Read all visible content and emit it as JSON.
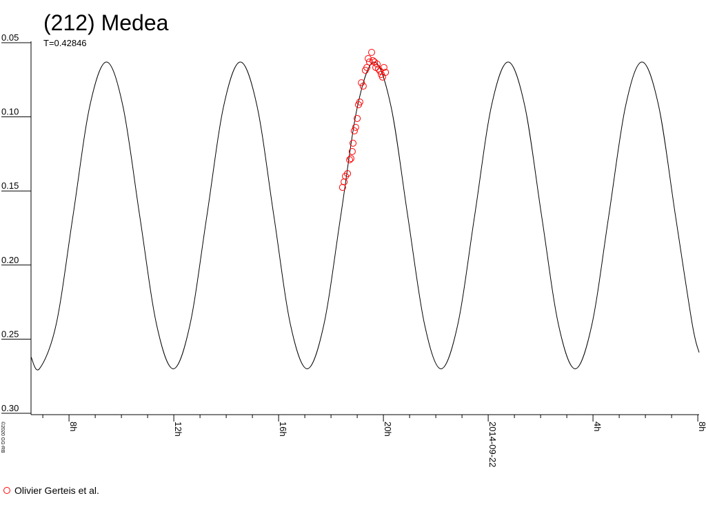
{
  "chart_data": {
    "type": "lightcurve",
    "title": "(212) Medea",
    "subtitle": "T=0.42846",
    "copyright": "©2020 GG-RB",
    "xlim": [
      -17.45,
      8.05
    ],
    "xticks": [
      {
        "value": -16,
        "label": "8h"
      },
      {
        "value": -12,
        "label": "12h"
      },
      {
        "value": -8,
        "label": "16h"
      },
      {
        "value": -4,
        "label": "20h"
      },
      {
        "value": 0,
        "label": "2014-09-22"
      },
      {
        "value": 4,
        "label": "4h"
      },
      {
        "value": 8,
        "label": "8h"
      }
    ],
    "xminorticks": [
      -17,
      -15,
      -14,
      -13,
      -11,
      -10,
      -9,
      -7,
      -6,
      -5,
      -3,
      -2,
      -1,
      1,
      2,
      3,
      5,
      6,
      7
    ],
    "ylim": [
      0.05,
      0.3
    ],
    "yinverted": true,
    "yticks": [
      0.05,
      {
        "value": 0.1,
        "label": "0.10"
      },
      0.15,
      {
        "value": 0.2,
        "label": "0.20"
      },
      0.25,
      {
        "value": 0.3,
        "label": "0.30"
      }
    ],
    "model": {
      "color": "#000000",
      "x": [
        -17.45,
        -17.13,
        -16.49,
        -15.85,
        -15.21,
        -14.57,
        -13.94,
        -13.3,
        -12.66,
        -12.02,
        -11.38,
        -10.74,
        -10.1,
        -9.46,
        -8.82,
        -8.18,
        -7.55,
        -6.91,
        -6.27,
        -5.63,
        -4.99,
        -4.35,
        -3.71,
        -3.07,
        -2.43,
        -1.8,
        -1.16,
        -0.52,
        0.12,
        0.76,
        1.4,
        2.04,
        2.68,
        3.32,
        3.96,
        4.6,
        5.24,
        5.87,
        6.51,
        7.15,
        7.79,
        8.05
      ],
      "values": [
        0.262,
        0.27,
        0.24,
        0.167,
        0.093,
        0.063,
        0.093,
        0.167,
        0.24,
        0.27,
        0.24,
        0.167,
        0.093,
        0.063,
        0.093,
        0.167,
        0.24,
        0.27,
        0.24,
        0.167,
        0.093,
        0.063,
        0.093,
        0.167,
        0.24,
        0.27,
        0.24,
        0.167,
        0.093,
        0.063,
        0.093,
        0.167,
        0.24,
        0.27,
        0.24,
        0.167,
        0.093,
        0.063,
        0.093,
        0.167,
        0.24,
        0.259
      ]
    },
    "series": [
      {
        "name": "Olivier Gerteis et al.",
        "color": "#ff0000",
        "x": [
          -5.56,
          -5.5,
          -5.45,
          -5.37,
          -5.29,
          -5.24,
          -5.19,
          -5.16,
          -5.11,
          -5.06,
          -5.0,
          -4.95,
          -4.9,
          -4.84,
          -4.77,
          -4.69,
          -4.63,
          -4.58,
          -4.53,
          -4.45,
          -4.4,
          -4.34,
          -4.29,
          -4.24,
          -4.19,
          -4.13,
          -4.08,
          -4.03,
          -3.98,
          -3.92
        ],
        "values": [
          0.1476,
          0.1439,
          0.1401,
          0.1383,
          0.129,
          0.1281,
          0.1234,
          0.1178,
          0.1095,
          0.1071,
          0.1011,
          0.0918,
          0.09,
          0.077,
          0.0793,
          0.0686,
          0.0667,
          0.0607,
          0.063,
          0.0565,
          0.0621,
          0.063,
          0.0667,
          0.0644,
          0.0677,
          0.0691,
          0.0714,
          0.0732,
          0.0667,
          0.07
        ]
      }
    ]
  }
}
